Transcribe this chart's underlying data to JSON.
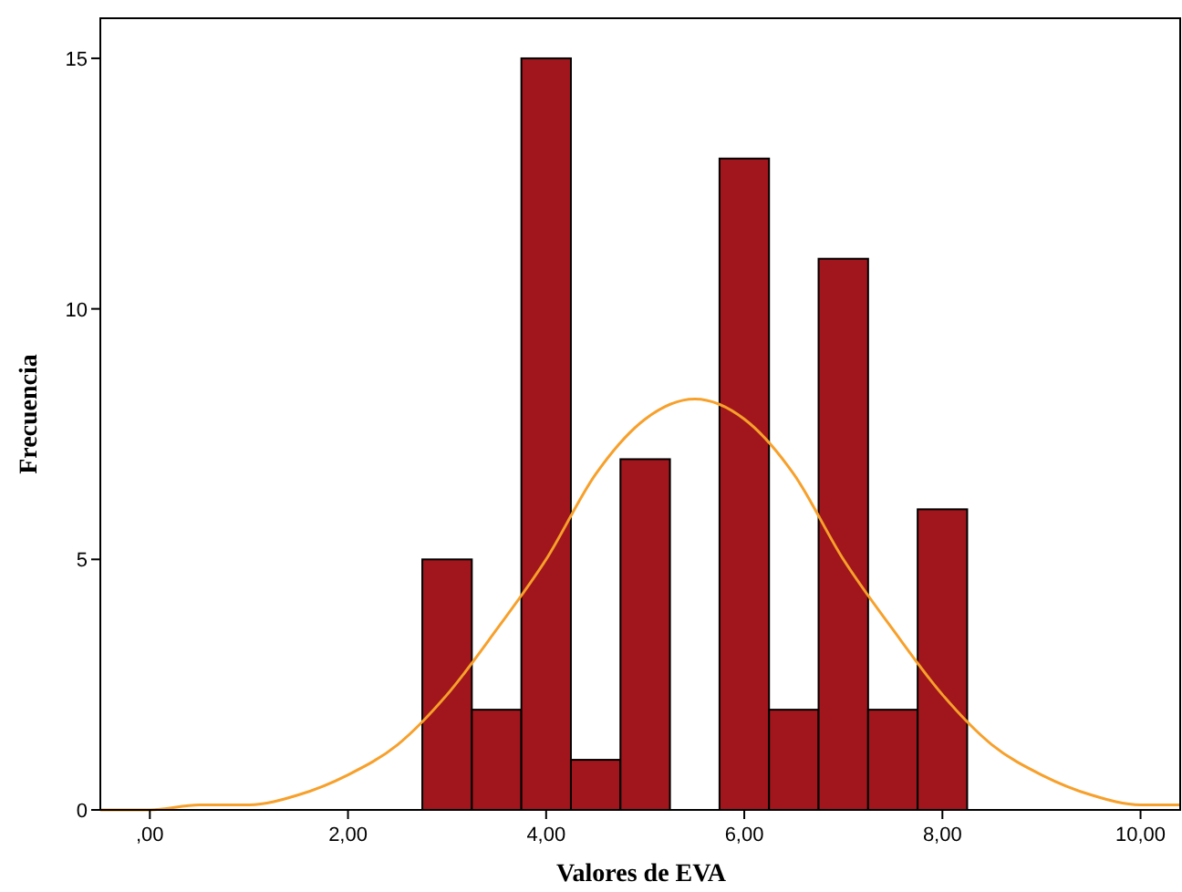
{
  "chart_data": {
    "type": "histogram",
    "xlabel": "Valores de EVA",
    "ylabel": "Frecuencia",
    "bins": [
      2.75,
      3.25,
      3.75,
      4.25,
      4.75,
      5.25,
      5.75,
      6.25,
      6.75,
      7.25,
      7.75,
      8.25
    ],
    "values": [
      5,
      2,
      15,
      1,
      7,
      0,
      13,
      2,
      11,
      2,
      6
    ],
    "color": "#a0161c",
    "series": [
      {
        "type": "line",
        "color": "#f7a02b",
        "x": [
          -0.5,
          0,
          0.5,
          1,
          1.5,
          2,
          2.5,
          3,
          3.5,
          4,
          4.5,
          5,
          5.5,
          6,
          6.5,
          7,
          7.5,
          8,
          8.5,
          9,
          9.5,
          10,
          10.4
        ],
        "values": [
          0,
          0,
          0.1,
          0.1,
          0.3,
          0.7,
          1.3,
          2.3,
          3.6,
          5,
          6.7,
          7.8,
          8.2,
          7.8,
          6.7,
          5,
          3.6,
          2.3,
          1.3,
          0.7,
          0.3,
          0.1,
          0.1
        ]
      }
    ],
    "xlim": [
      -0.5,
      10.4
    ],
    "ylim": [
      0,
      15.8
    ],
    "xticks": [
      {
        "value": 0,
        "label": ",00"
      },
      {
        "value": 2,
        "label": "2,00"
      },
      {
        "value": 4,
        "label": "4,00"
      },
      {
        "value": 6,
        "label": "6,00"
      },
      {
        "value": 8,
        "label": "8,00"
      },
      {
        "value": 10,
        "label": "10,00"
      }
    ],
    "yticks": [
      0,
      5,
      10,
      15
    ],
    "marker": "none",
    "line_style": "solid"
  }
}
